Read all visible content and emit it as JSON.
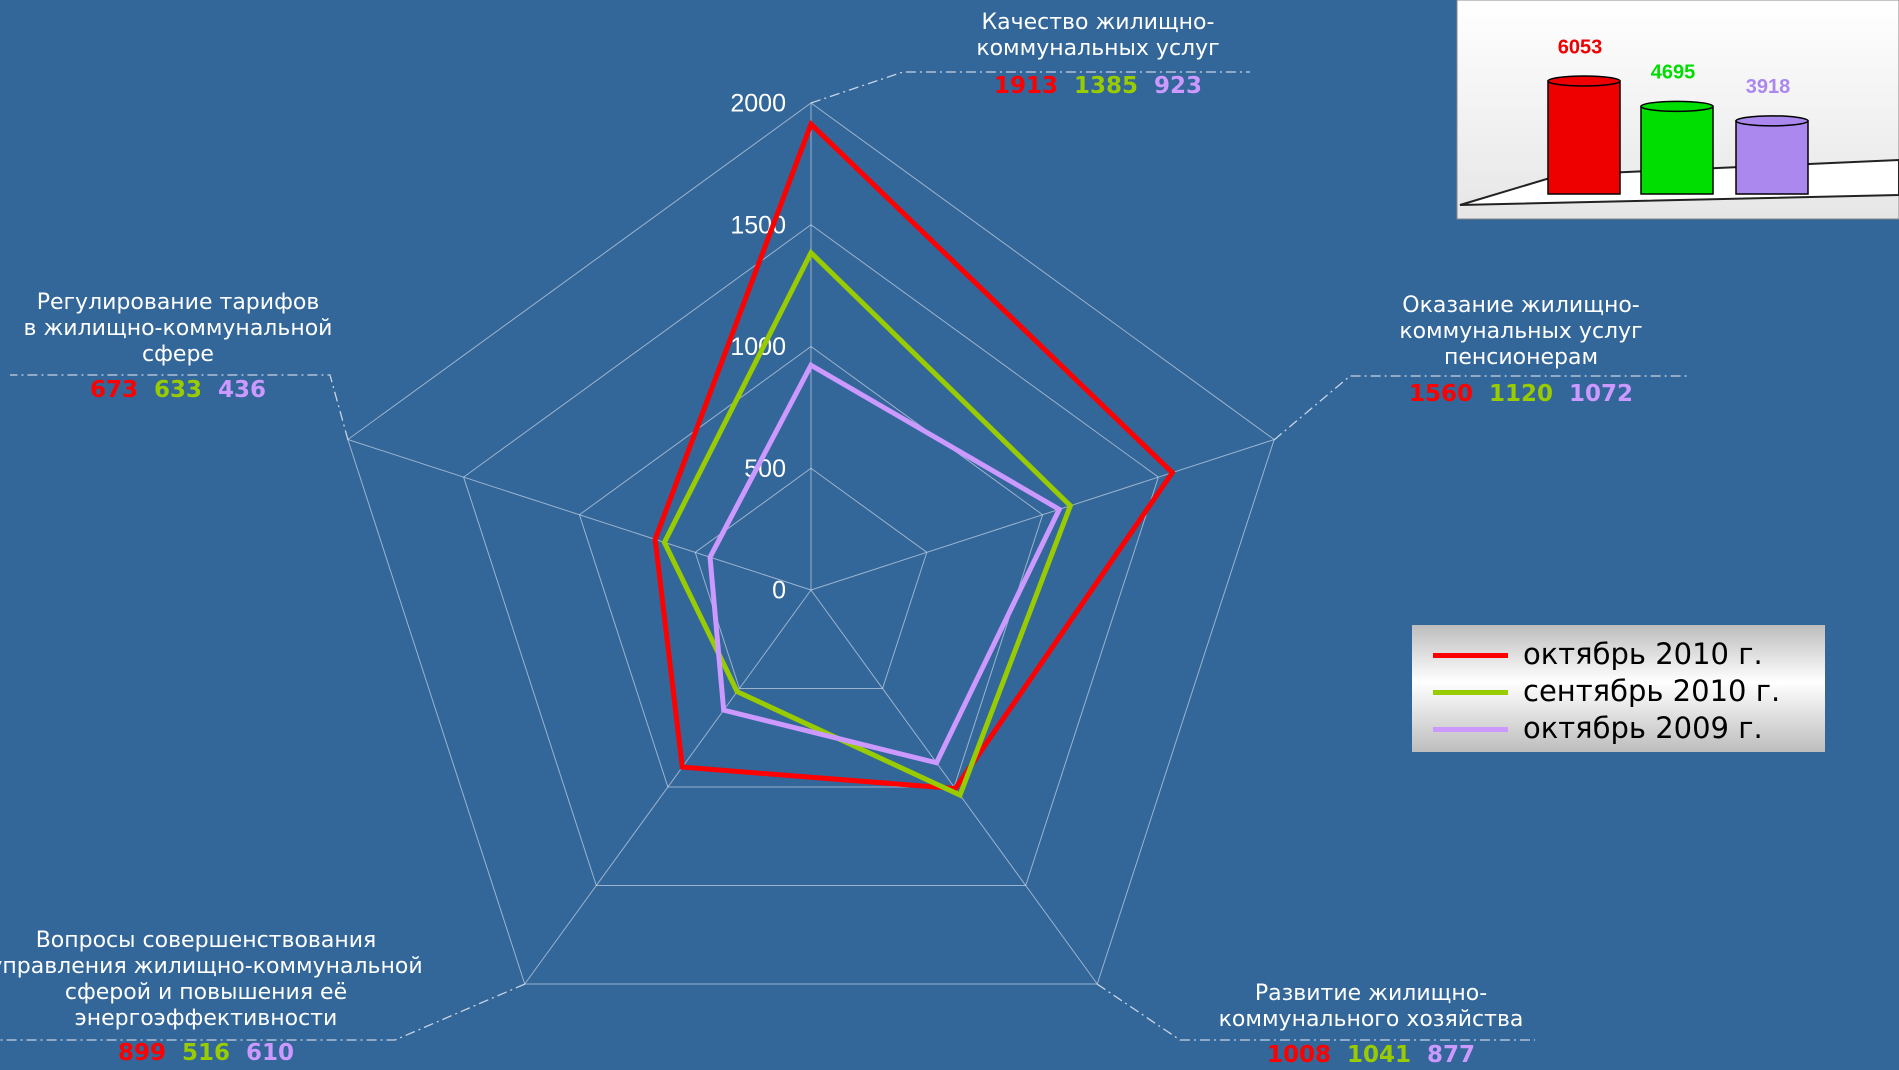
{
  "chart_data": [
    {
      "type": "radar",
      "categories": [
        "Качество жилищно-\nкоммунальных услуг",
        "Оказание жилищно-\nкоммунальных услуг\nпенсионерам",
        "Развитие жилищно-\nкоммунального хозяйства",
        "Вопросы совершенствования\nуправления жилищно-коммунальной\nсферой и повышения её\nэнергоэффективности",
        "Регулирование тарифов\nв жилищно-коммунальной\nсфере"
      ],
      "series": [
        {
          "name": "октябрь 2010 г.",
          "color": "#ff0000",
          "values": [
            1913,
            1560,
            1008,
            899,
            673
          ]
        },
        {
          "name": "сентябрь 2010 г.",
          "color": "#99cc00",
          "values": [
            1385,
            1120,
            1041,
            516,
            633
          ]
        },
        {
          "name": "октябрь 2009 г.",
          "color": "#cc99ff",
          "values": [
            923,
            1072,
            877,
            610,
            436
          ]
        }
      ],
      "ylim": [
        0,
        2000
      ],
      "yticks": [
        0,
        500,
        1000,
        1500,
        2000
      ],
      "grid": true,
      "legend": "right"
    },
    {
      "type": "bar",
      "categories": [
        null,
        null,
        null
      ],
      "values": [
        6053,
        4695,
        3918
      ],
      "colors": [
        "#ee0000",
        "#00dd00",
        "#aa88ee"
      ]
    }
  ]
}
